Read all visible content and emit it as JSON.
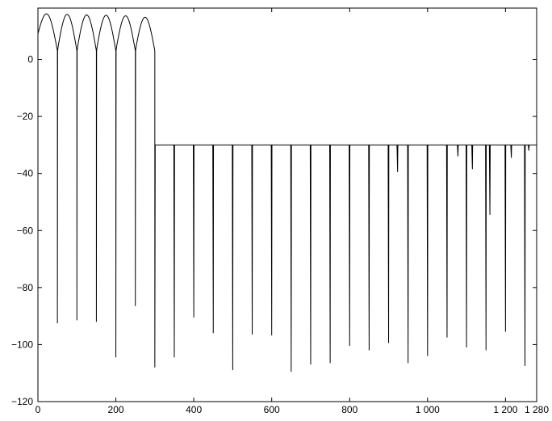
{
  "chart_data": {
    "type": "line",
    "title": "",
    "xlabel": "",
    "ylabel": "",
    "xlim": [
      0,
      1280
    ],
    "ylim": [
      -120,
      18
    ],
    "grid": false,
    "x_ticks": [
      0,
      200,
      400,
      600,
      800,
      1000,
      1200,
      1280
    ],
    "x_tick_labels": [
      "0",
      "200",
      "400",
      "600",
      "800",
      "1 000",
      "1 200",
      "1 280"
    ],
    "y_ticks": [
      0,
      -20,
      -40,
      -60,
      -80,
      -100,
      -120
    ],
    "y_tick_labels": [
      "0",
      "−20",
      "−40",
      "−60",
      "−80",
      "−100",
      "−120"
    ],
    "passband": {
      "x_range": [
        0,
        300
      ],
      "lobe_peak_db": 16,
      "lobe_peaks": [
        [
          22,
          16
        ],
        [
          75,
          15.8
        ],
        [
          125,
          15.6
        ],
        [
          175,
          15.5
        ],
        [
          225,
          15.3
        ],
        [
          275,
          14.8
        ]
      ]
    },
    "stopband_level_db": -30,
    "series": [
      {
        "color": "#000000",
        "nulls": [
          [
            50,
            -92.5
          ],
          [
            100,
            -91.5
          ],
          [
            150,
            -92
          ],
          [
            200,
            -104.5
          ],
          [
            250,
            -86.5
          ],
          [
            300,
            -108
          ],
          [
            350,
            -104.5
          ],
          [
            400,
            -90.5
          ],
          [
            450,
            -96
          ],
          [
            500,
            -109
          ],
          [
            550,
            -96.5
          ],
          [
            600,
            -96.8
          ],
          [
            650,
            -109.5
          ],
          [
            700,
            -107
          ],
          [
            750,
            -106.5
          ],
          [
            800,
            -100.5
          ],
          [
            850,
            -102
          ],
          [
            900,
            -99.5
          ],
          [
            950,
            -106.5
          ],
          [
            1000,
            -104
          ],
          [
            1050,
            -97.5
          ],
          [
            1100,
            -101
          ],
          [
            1150,
            -102
          ],
          [
            1200,
            -95.5
          ],
          [
            1250,
            -107.5
          ]
        ],
        "small_dips": [
          [
            923,
            -39.5
          ],
          [
            1078,
            -34
          ],
          [
            1115,
            -38.5
          ],
          [
            1160,
            -54.5
          ],
          [
            1215,
            -34.5
          ],
          [
            1260,
            -32
          ]
        ]
      }
    ]
  }
}
